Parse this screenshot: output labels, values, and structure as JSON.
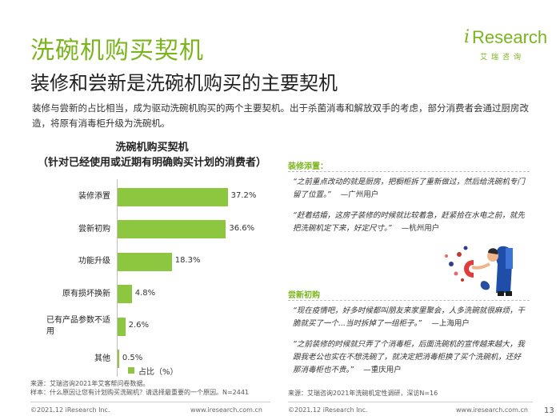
{
  "header": {
    "title": "洗碗机购买契机",
    "subtitle": "装修和尝新是洗碗机购买的主要契机",
    "intro": "装修与尝新的占比相当，成为驱动洗碗机购买的两个主要契机。出于杀菌消毒和解放双手的考虑，部分消费者会通过厨房改造，将原有消毒柜升级为洗碗机。"
  },
  "logo": {
    "i": "i",
    "research": "Research",
    "sub": "艾瑞咨询"
  },
  "chart_data": {
    "type": "bar",
    "orientation": "horizontal",
    "title": "洗碗机购买契机",
    "subtitle": "（针对已经使用或近期有明确购买计划的消费者）",
    "categories": [
      "装修添置",
      "尝新初购",
      "功能升级",
      "原有损坏换新",
      "已有产品参数不适用",
      "其他"
    ],
    "series": [
      {
        "name": "占比（%）",
        "values": [
          37.2,
          36.6,
          18.3,
          4.8,
          2.6,
          0.5
        ]
      }
    ],
    "value_labels": [
      "37.2%",
      "36.6%",
      "18.3%",
      "4.8%",
      "2.6%",
      "0.5%"
    ],
    "xlim": [
      0,
      40
    ],
    "legend": "bottom",
    "color": "#8dc63f"
  },
  "source_left": {
    "line1": "来源：艾瑞咨询2021年艾客帮问卷数据。",
    "line2": "样本：什么原因让您有计划购买洗碗机？请选择最重要的一个原因。N=2441"
  },
  "right": {
    "section1": {
      "title": "装修添置：",
      "quotes": [
        {
          "text": "“之前重点改动的就是厨房，把橱柜拆了重新做过，然后给洗碗机专门留了位置。”",
          "user": "—广州用户"
        },
        {
          "text": "“赶着结婚，这房子装修的时候就比较着急，赶紧拾在水电之前，就先把洗碗机定下来，好定尺寸。”",
          "user": "—杭州用户"
        }
      ]
    },
    "section2": {
      "title": "尝新初购",
      "quotes": [
        {
          "text": "“现在疫情吧，好多时候都叫朋友来家里聚会，人多洗碗就很麻烦，干脆就买了一个...当时拆掉了一组柜子。”",
          "user": "—上海用户"
        },
        {
          "text": "“之前装修的时候就只弄了个消毒柜，后面洗碗机的宣传越来越大，我跟我老公也实在不想洗碗了，就决定把消毒柜换了买个洗碗机，还好那消毒柜也不贵。”",
          "user": "—重庆用户"
        }
      ]
    },
    "source": "来源：艾瑞咨询2021年洗碗机定性调研，深访N=16"
  },
  "footer": {
    "left_copyright": "©2021.12 iResearch Inc.",
    "left_url": "www.iresearch.com.cn",
    "right_copyright": "©2021.12 iResearch Inc.",
    "right_url": "www.iresearch.com.cn",
    "page": "13"
  }
}
